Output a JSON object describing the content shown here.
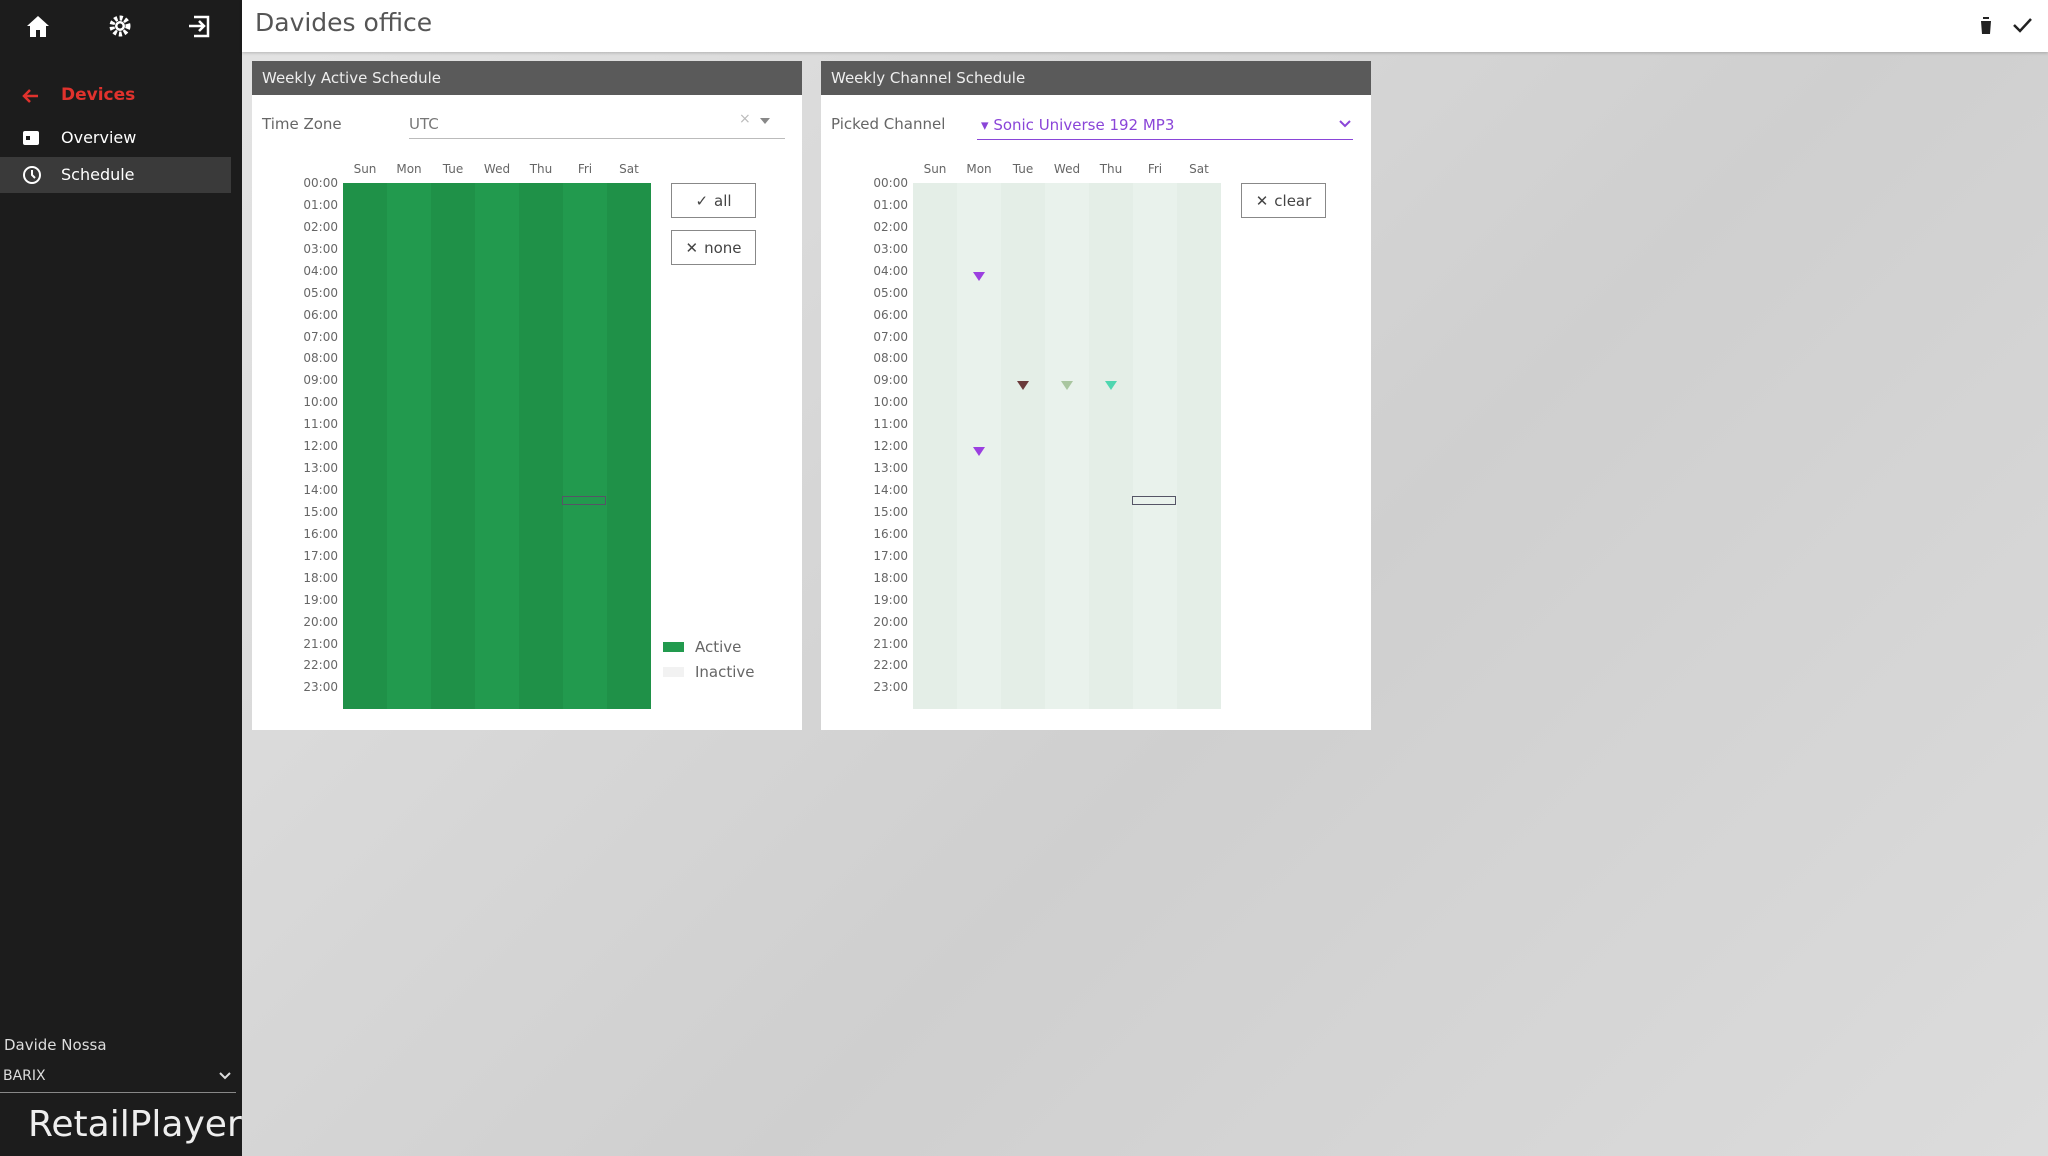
{
  "header": {
    "title": "Davides office"
  },
  "sidebar": {
    "section": "Devices",
    "items": [
      "Overview",
      "Schedule"
    ],
    "user": "Davide Nossa",
    "account": "BARIX",
    "brand": "RetailPlayer"
  },
  "active_panel": {
    "title": "Weekly Active Schedule",
    "field_label": "Time Zone",
    "field_value": "UTC",
    "buttons": [
      "all",
      "none"
    ],
    "legend": [
      "Active",
      "Inactive"
    ]
  },
  "channel_panel": {
    "title": "Weekly Channel Schedule",
    "field_label": "Picked Channel",
    "field_value": "Sonic Universe 192 MP3",
    "button": "clear"
  },
  "days": [
    "Sun",
    "Mon",
    "Tue",
    "Wed",
    "Thu",
    "Fri",
    "Sat"
  ],
  "hours": [
    "00:00",
    "01:00",
    "02:00",
    "03:00",
    "04:00",
    "05:00",
    "06:00",
    "07:00",
    "08:00",
    "09:00",
    "10:00",
    "11:00",
    "12:00",
    "13:00",
    "14:00",
    "15:00",
    "16:00",
    "17:00",
    "18:00",
    "19:00",
    "20:00",
    "21:00",
    "22:00",
    "23:00"
  ]
}
